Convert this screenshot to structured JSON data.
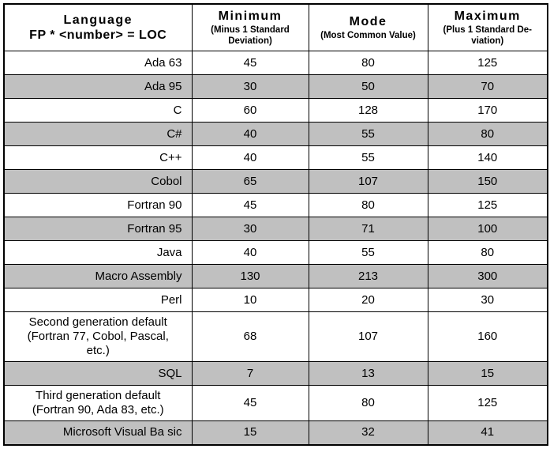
{
  "colors": {
    "shaded_row": "#c0c0c0",
    "border": "#000000",
    "background": "#ffffff"
  },
  "header": {
    "language_title": "Language",
    "language_subtitle": "FP * <number> = LOC",
    "min_title": "Minimum",
    "min_subtitle": "(Minus 1 Standard\nDeviation)",
    "mode_title": "Mode",
    "mode_subtitle": "(Most Common Value)",
    "max_title": "Maximum",
    "max_subtitle": "(Plus 1 Standard De-\nviation)"
  },
  "rows": [
    {
      "language": "Ada 63",
      "min": 45,
      "mode": 80,
      "max": 125
    },
    {
      "language": "Ada 95",
      "min": 30,
      "mode": 50,
      "max": 70
    },
    {
      "language": "C",
      "min": 60,
      "mode": 128,
      "max": 170
    },
    {
      "language": "C#",
      "min": 40,
      "mode": 55,
      "max": 80
    },
    {
      "language": "C++",
      "min": 40,
      "mode": 55,
      "max": 140
    },
    {
      "language": "Cobol",
      "min": 65,
      "mode": 107,
      "max": 150
    },
    {
      "language": "Fortran 90",
      "min": 45,
      "mode": 80,
      "max": 125
    },
    {
      "language": "Fortran 95",
      "min": 30,
      "mode": 71,
      "max": 100
    },
    {
      "language": "Java",
      "min": 40,
      "mode": 55,
      "max": 80
    },
    {
      "language": "Macro Assembly",
      "min": 130,
      "mode": 213,
      "max": 300
    },
    {
      "language": "Perl",
      "min": 10,
      "mode": 20,
      "max": 30
    },
    {
      "language": "Second generation default\n(Fortran 77, Cobol, Pascal,\netc.)",
      "min": 68,
      "mode": 107,
      "max": 160
    },
    {
      "language": "SQL",
      "min": 7,
      "mode": 13,
      "max": 15
    },
    {
      "language": "Third generation default\n(Fortran 90, Ada 83, etc.)",
      "min": 45,
      "mode": 80,
      "max": 125
    },
    {
      "language": "Microsoft Visual Ba sic",
      "min": 15,
      "mode": 32,
      "max": 41
    }
  ]
}
